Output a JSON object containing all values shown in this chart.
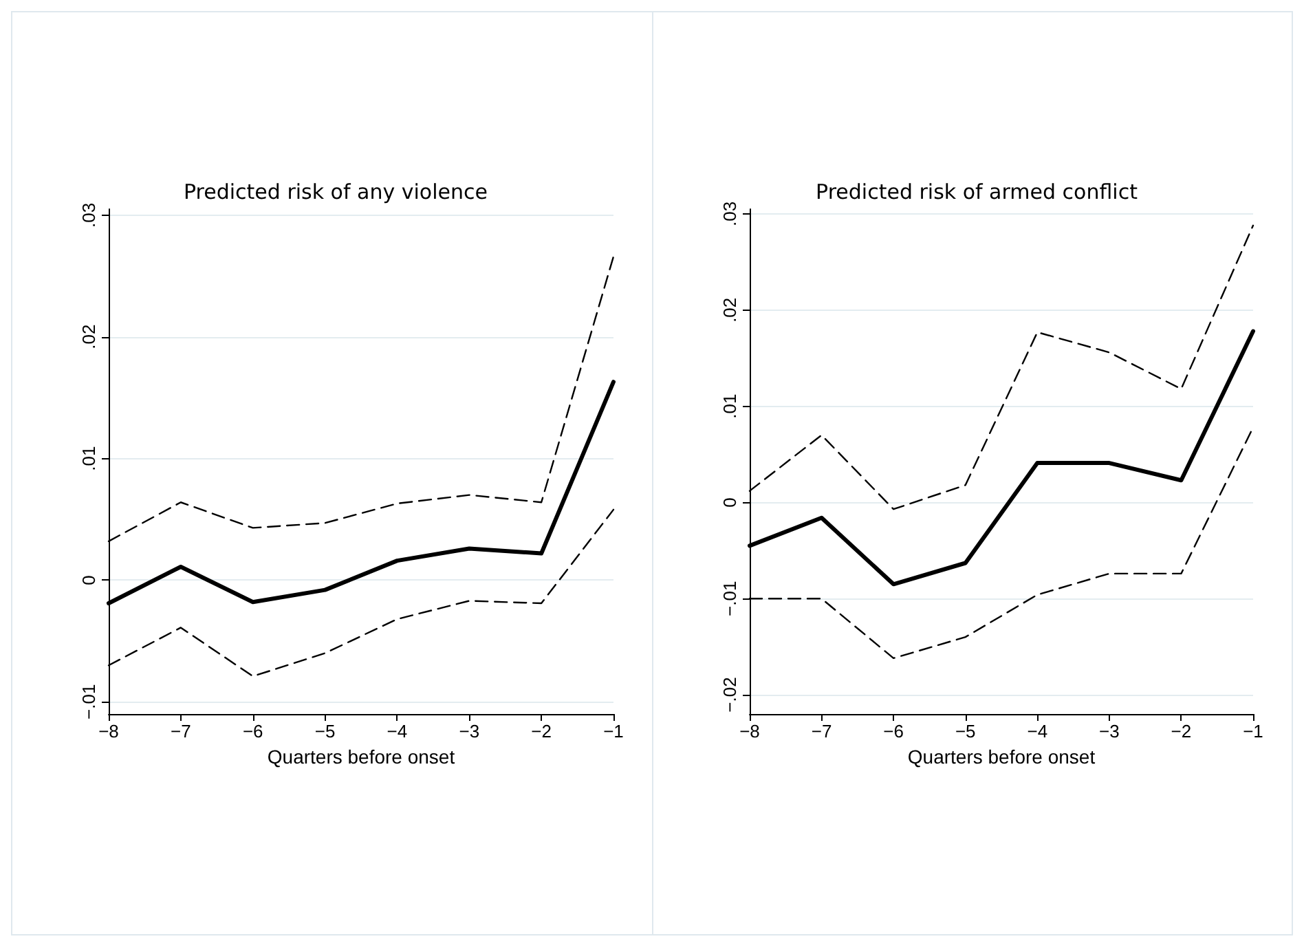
{
  "chart_data": [
    {
      "type": "line",
      "title": "Predicted risk of any violence",
      "xlabel": "Quarters before onset",
      "x": [
        -8,
        -7,
        -6,
        -5,
        -4,
        -3,
        -2,
        -1
      ],
      "xlim": [
        -8,
        -1
      ],
      "xticks": [
        {
          "value": -8,
          "label": "−8"
        },
        {
          "value": -7,
          "label": "−7"
        },
        {
          "value": -6,
          "label": "−6"
        },
        {
          "value": -5,
          "label": "−5"
        },
        {
          "value": -4,
          "label": "−4"
        },
        {
          "value": -3,
          "label": "−3"
        },
        {
          "value": -2,
          "label": "−2"
        },
        {
          "value": -1,
          "label": "−1"
        }
      ],
      "ylim": [
        -0.011,
        0.0305
      ],
      "yticks": [
        {
          "value": -0.01,
          "label": "−.01"
        },
        {
          "value": 0,
          "label": "0"
        },
        {
          "value": 0.01,
          "label": ".01"
        },
        {
          "value": 0.02,
          "label": ".02"
        },
        {
          "value": 0.03,
          "label": ".03"
        }
      ],
      "grid": "y",
      "marker": "none",
      "series": [
        {
          "color": "#000000",
          "line_style": "solid",
          "values": [
            -0.0019,
            0.0011,
            -0.0018,
            -0.0008,
            0.0016,
            0.0026,
            0.0022,
            0.0163
          ]
        },
        {
          "color": "#000000",
          "line_style": "dashed",
          "values": [
            0.0032,
            0.0064,
            0.0043,
            0.0047,
            0.0063,
            0.007,
            0.0064,
            0.0266
          ]
        },
        {
          "color": "#000000",
          "line_style": "dashed",
          "values": [
            -0.007,
            -0.0039,
            -0.0079,
            -0.006,
            -0.0032,
            -0.0017,
            -0.0019,
            0.0058
          ]
        }
      ]
    },
    {
      "type": "line",
      "title": "Predicted risk of armed conflict",
      "xlabel": "Quarters before onset",
      "x": [
        -8,
        -7,
        -6,
        -5,
        -4,
        -3,
        -2,
        -1
      ],
      "xlim": [
        -8,
        -1
      ],
      "xticks": [
        {
          "value": -8,
          "label": "−8"
        },
        {
          "value": -7,
          "label": "−7"
        },
        {
          "value": -6,
          "label": "−6"
        },
        {
          "value": -5,
          "label": "−5"
        },
        {
          "value": -4,
          "label": "−4"
        },
        {
          "value": -3,
          "label": "−3"
        },
        {
          "value": -2,
          "label": "−2"
        },
        {
          "value": -1,
          "label": "−1"
        }
      ],
      "ylim": [
        -0.022,
        0.0305
      ],
      "yticks": [
        {
          "value": -0.02,
          "label": "−.02"
        },
        {
          "value": -0.01,
          "label": "−.01"
        },
        {
          "value": 0,
          "label": "0"
        },
        {
          "value": 0.01,
          "label": ".01"
        },
        {
          "value": 0.02,
          "label": ".02"
        },
        {
          "value": 0.03,
          "label": ".03"
        }
      ],
      "grid": "y",
      "marker": "none",
      "series": [
        {
          "color": "#000000",
          "line_style": "solid",
          "values": [
            -0.0045,
            -0.0016,
            -0.0085,
            -0.0063,
            0.0041,
            0.0041,
            0.0023,
            0.0178
          ]
        },
        {
          "color": "#000000",
          "line_style": "dashed",
          "values": [
            0.0012,
            0.007,
            -0.0007,
            0.0018,
            0.0177,
            0.0156,
            0.0118,
            0.0288
          ]
        },
        {
          "color": "#000000",
          "line_style": "dashed",
          "values": [
            -0.01,
            -0.01,
            -0.0162,
            -0.014,
            -0.0096,
            -0.0074,
            -0.0074,
            0.0078
          ]
        }
      ]
    }
  ]
}
